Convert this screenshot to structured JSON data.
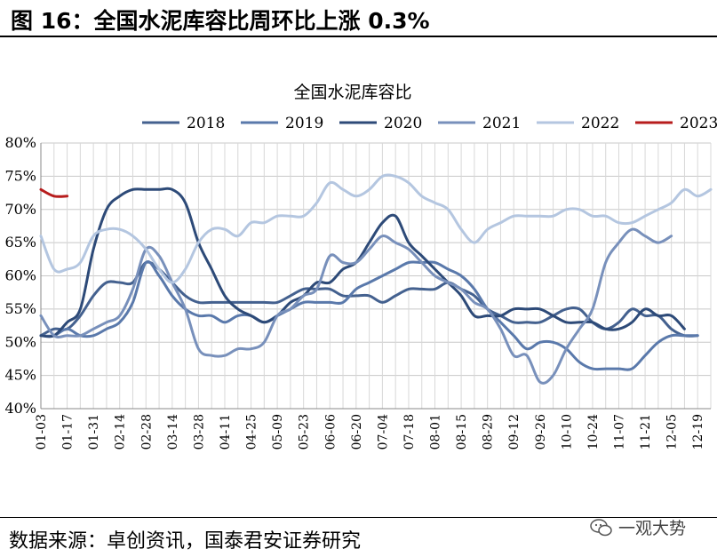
{
  "figure": {
    "title": "图 16：全国水泥库容比周环比上涨 0.3%",
    "source": "数据来源：卓创资讯，国泰君安证券研究",
    "watermark": "一观大势"
  },
  "chart_data": {
    "type": "line",
    "title": "全国水泥库容比",
    "xlabel": "",
    "ylabel": "",
    "ylim": [
      40,
      80
    ],
    "yticks": [
      "40%",
      "45%",
      "50%",
      "55%",
      "60%",
      "65%",
      "70%",
      "75%",
      "80%"
    ],
    "x_range": [
      0,
      51
    ],
    "x_ticks": [
      {
        "label": "01-03",
        "x": 0
      },
      {
        "label": "01-17",
        "x": 2
      },
      {
        "label": "01-31",
        "x": 4
      },
      {
        "label": "02-14",
        "x": 6
      },
      {
        "label": "02-28",
        "x": 8
      },
      {
        "label": "03-14",
        "x": 10
      },
      {
        "label": "03-28",
        "x": 12
      },
      {
        "label": "04-11",
        "x": 14
      },
      {
        "label": "04-25",
        "x": 16
      },
      {
        "label": "05-09",
        "x": 18
      },
      {
        "label": "05-23",
        "x": 20
      },
      {
        "label": "06-06",
        "x": 22
      },
      {
        "label": "06-20",
        "x": 24
      },
      {
        "label": "07-04",
        "x": 26
      },
      {
        "label": "07-18",
        "x": 28
      },
      {
        "label": "08-01",
        "x": 30
      },
      {
        "label": "08-15",
        "x": 32
      },
      {
        "label": "08-29",
        "x": 34
      },
      {
        "label": "09-12",
        "x": 36
      },
      {
        "label": "09-26",
        "x": 38
      },
      {
        "label": "10-10",
        "x": 40
      },
      {
        "label": "10-24",
        "x": 42
      },
      {
        "label": "11-07",
        "x": 44
      },
      {
        "label": "11-21",
        "x": 46
      },
      {
        "label": "12-05",
        "x": 48
      },
      {
        "label": "12-19",
        "x": 50
      }
    ],
    "grid": true,
    "legend_position": "top",
    "series": [
      {
        "name": "2018",
        "color": "#44618f",
        "x": [
          0,
          1,
          2,
          3,
          4,
          5,
          6,
          7,
          8,
          9,
          10,
          11,
          12,
          13,
          14,
          15,
          16,
          17,
          18,
          19,
          20,
          21,
          22,
          23,
          24,
          25,
          26,
          27,
          28,
          29,
          30,
          31,
          32,
          33,
          34,
          35,
          36,
          37,
          38,
          39,
          40,
          41,
          42,
          43,
          44,
          45,
          46,
          47,
          48,
          49,
          50
        ],
        "values": [
          51,
          52,
          52,
          54,
          57,
          59,
          59,
          59,
          62,
          61,
          59,
          57,
          56,
          56,
          56,
          56,
          56,
          56,
          56,
          57,
          58,
          58,
          58,
          57,
          57,
          57,
          56,
          57,
          58,
          58,
          58,
          59,
          58,
          57,
          55,
          54,
          53,
          53,
          53,
          54,
          55,
          55,
          53,
          52,
          53,
          55,
          54,
          54,
          52,
          51,
          51
        ]
      },
      {
        "name": "2019",
        "color": "#5a79ab",
        "x": [
          0,
          1,
          2,
          3,
          4,
          5,
          6,
          7,
          8,
          9,
          10,
          11,
          12,
          13,
          14,
          15,
          16,
          17,
          18,
          19,
          20,
          21,
          22,
          23,
          24,
          25,
          26,
          27,
          28,
          29,
          30,
          31,
          32,
          33,
          34,
          35,
          36,
          37,
          38,
          39,
          40,
          41,
          42,
          43,
          44,
          45,
          46,
          47,
          48,
          49,
          50
        ],
        "values": [
          51,
          51,
          52,
          51,
          51,
          52,
          53,
          56,
          62,
          60,
          57,
          55,
          54,
          54,
          53,
          54,
          54,
          53,
          54,
          55,
          56,
          56,
          56,
          56,
          58,
          59,
          60,
          61,
          62,
          62,
          62,
          61,
          60,
          58,
          55,
          53,
          51,
          49,
          50,
          50,
          49,
          47,
          46,
          46,
          46,
          46,
          48,
          50,
          51,
          51,
          51
        ]
      },
      {
        "name": "2020",
        "color": "#2d4a78",
        "x": [
          0,
          1,
          2,
          3,
          4,
          5,
          6,
          7,
          8,
          9,
          10,
          11,
          12,
          13,
          14,
          15,
          16,
          17,
          18,
          19,
          20,
          21,
          22,
          23,
          24,
          25,
          26,
          27,
          28,
          29,
          30,
          31,
          32,
          33,
          34,
          35,
          36,
          37,
          38,
          39,
          40,
          41,
          42,
          43,
          44,
          45,
          46,
          47,
          48,
          49
        ],
        "values": [
          51,
          51,
          53,
          55,
          64,
          70,
          72,
          73,
          73,
          73,
          73,
          71,
          65,
          61,
          57,
          55,
          54,
          53,
          54,
          56,
          57,
          59,
          59,
          61,
          62,
          65,
          68,
          69,
          65,
          63,
          61,
          59,
          57,
          54,
          54,
          54,
          55,
          55,
          55,
          54,
          53,
          53,
          53,
          52,
          52,
          53,
          55,
          54,
          54,
          52
        ]
      },
      {
        "name": "2021",
        "color": "#7890bb",
        "x": [
          0,
          1,
          2,
          3,
          4,
          5,
          6,
          7,
          8,
          9,
          10,
          11,
          12,
          13,
          14,
          15,
          16,
          17,
          18,
          19,
          20,
          21,
          22,
          23,
          24,
          25,
          26,
          27,
          28,
          29,
          30,
          31,
          32,
          33,
          34,
          35,
          36,
          37,
          38,
          39,
          40,
          41,
          42,
          43,
          44,
          45,
          46,
          47,
          48
        ],
        "values": [
          54,
          51,
          51,
          51,
          52,
          53,
          54,
          58,
          64,
          63,
          59,
          55,
          49,
          48,
          48,
          49,
          49,
          50,
          54,
          55,
          57,
          58,
          63,
          62,
          62,
          64,
          66,
          65,
          64,
          62,
          60,
          59,
          58,
          56,
          55,
          52,
          48,
          48,
          44,
          45,
          49,
          52,
          55,
          62,
          65,
          67,
          66,
          65,
          66
        ]
      },
      {
        "name": "2022",
        "color": "#b4c6e0",
        "x": [
          0,
          1,
          2,
          3,
          4,
          5,
          6,
          7,
          8,
          9,
          10,
          11,
          12,
          13,
          14,
          15,
          16,
          17,
          18,
          19,
          20,
          21,
          22,
          23,
          24,
          25,
          26,
          27,
          28,
          29,
          30,
          31,
          32,
          33,
          34,
          35,
          36,
          37,
          38,
          39,
          40,
          41,
          42,
          43,
          44,
          45,
          46,
          47,
          48,
          49,
          50,
          51
        ],
        "values": [
          66,
          61,
          61,
          62,
          66,
          67,
          67,
          66,
          64,
          61,
          59,
          61,
          65,
          67,
          67,
          66,
          68,
          68,
          69,
          69,
          69,
          71,
          74,
          73,
          72,
          73,
          75,
          75,
          74,
          72,
          71,
          70,
          67,
          65,
          67,
          68,
          69,
          69,
          69,
          69,
          70,
          70,
          69,
          69,
          68,
          68,
          69,
          70,
          71,
          73,
          72,
          73
        ]
      },
      {
        "name": "2023",
        "color": "#b71c1c",
        "x": [
          0,
          1,
          2
        ],
        "values": [
          73,
          72,
          72
        ]
      }
    ]
  }
}
